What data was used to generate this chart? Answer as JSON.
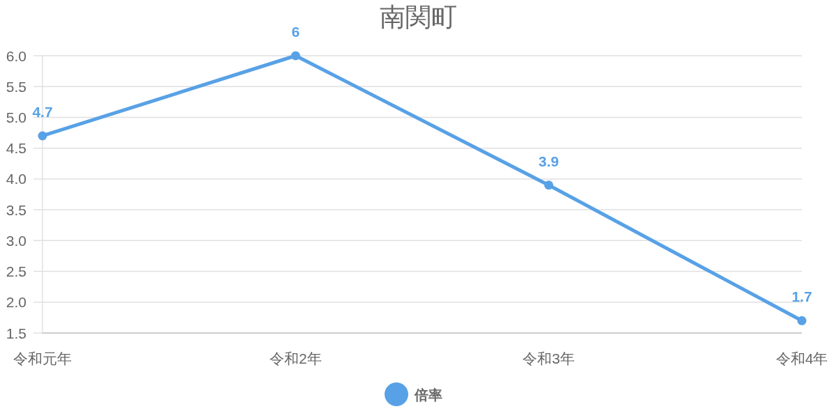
{
  "chart_data": {
    "type": "line",
    "title": "南関町",
    "categories": [
      "令和元年",
      "令和2年",
      "令和3年",
      "令和4年"
    ],
    "series": [
      {
        "name": "倍率",
        "color": "#58a1e6",
        "values": [
          4.7,
          6,
          3.9,
          1.7
        ]
      }
    ],
    "ylim": [
      1.5,
      6.0
    ],
    "yticks": [
      1.5,
      {
        "value": 2,
        "label": "2.0"
      },
      2.5,
      {
        "value": 3,
        "label": "3.0"
      },
      3.5,
      {
        "value": 4,
        "label": "4.0"
      },
      4.5,
      {
        "value": 5,
        "label": "5.0"
      },
      5.5,
      {
        "value": 6,
        "label": "6.0"
      }
    ],
    "grid": "y",
    "legend": "bottom",
    "marker": "circle",
    "line_style": "solid",
    "data_labels": true
  }
}
